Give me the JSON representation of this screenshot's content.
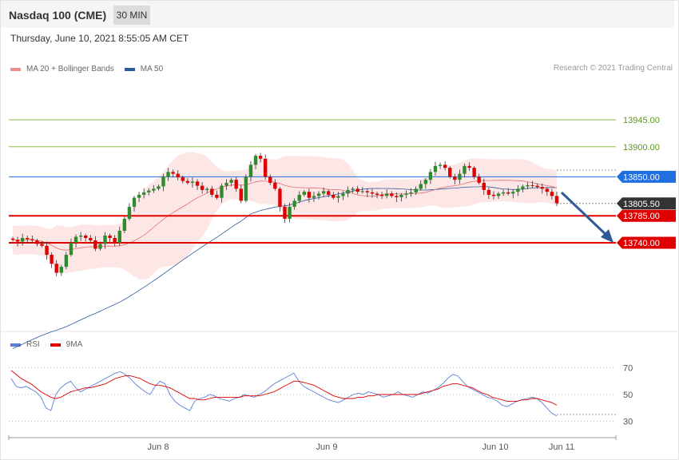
{
  "header": {
    "title": "Nasdaq 100 (CME)",
    "timeframe": "30 MIN"
  },
  "date_line": "Thursday, June 10, 2021 8:55:05 AM CET",
  "legend": {
    "main": [
      {
        "label": "MA 20 + Bollinger Bands",
        "color": "#f08c8c"
      },
      {
        "label": "MA 50",
        "color": "#2e5a99"
      }
    ],
    "rsi": [
      {
        "label": "RSI",
        "color": "#5b7fd6"
      },
      {
        "label": "9MA",
        "color": "#e00000"
      }
    ]
  },
  "credit": "Research © 2021 Trading Central",
  "chart_data": [
    {
      "type": "candlestick",
      "price_axis_range": [
        13600,
        13970
      ],
      "x_ticks": [
        "Jun 8",
        "Jun 9",
        "Jun 10",
        "Jun 11"
      ],
      "levels": [
        {
          "value": 13945.0,
          "label": "13945.00",
          "kind": "resistance",
          "color": "#8fbf4a"
        },
        {
          "value": 13900.0,
          "label": "13900.00",
          "kind": "resistance",
          "color": "#8fbf4a"
        },
        {
          "value": 13850.0,
          "label": "13850.00",
          "kind": "pivot",
          "color": "#1f6fe0"
        },
        {
          "value": 13805.5,
          "label": "13805.50",
          "kind": "last",
          "color": "#333333"
        },
        {
          "value": 13785.0,
          "label": "13785.00",
          "kind": "support",
          "color": "#e00000"
        },
        {
          "value": 13740.0,
          "label": "13740.00",
          "kind": "support",
          "color": "#e00000"
        }
      ],
      "close_path": [
        13745,
        13742,
        13748,
        13746,
        13744,
        13738,
        13735,
        13720,
        13705,
        13690,
        13700,
        13720,
        13740,
        13750,
        13752,
        13748,
        13744,
        13730,
        13738,
        13752,
        13748,
        13740,
        13760,
        13780,
        13800,
        13815,
        13820,
        13824,
        13827,
        13830,
        13834,
        13850,
        13858,
        13855,
        13849,
        13843,
        13840,
        13842,
        13835,
        13828,
        13830,
        13820,
        13815,
        13835,
        13840,
        13845,
        13830,
        13810,
        13850,
        13870,
        13885,
        13880,
        13850,
        13840,
        13830,
        13800,
        13780,
        13800,
        13810,
        13820,
        13825,
        13815,
        13818,
        13822,
        13826,
        13820,
        13815,
        13818,
        13822,
        13828,
        13830,
        13825,
        13826,
        13824,
        13822,
        13820,
        13818,
        13822,
        13818,
        13816,
        13820,
        13822,
        13824,
        13830,
        13838,
        13845,
        13858,
        13868,
        13870,
        13865,
        13850,
        13845,
        13855,
        13868,
        13865,
        13850,
        13840,
        13828,
        13820,
        13818,
        13822,
        13824,
        13822,
        13825,
        13830,
        13834,
        13836,
        13835,
        13833,
        13830,
        13825,
        13818,
        13806
      ]
    },
    {
      "type": "line",
      "title": "RSI",
      "y_ticks": [
        70,
        50,
        30
      ],
      "ylim": [
        20,
        80
      ],
      "series": [
        {
          "name": "RSI",
          "values": [
            62,
            56,
            55,
            56,
            54,
            52,
            48,
            40,
            38,
            50,
            55,
            58,
            60,
            55,
            52,
            54,
            56,
            58,
            60,
            62,
            64,
            66,
            67,
            65,
            62,
            58,
            55,
            52,
            50,
            56,
            60,
            58,
            50,
            45,
            42,
            40,
            38,
            45,
            47,
            48,
            50,
            49,
            47,
            46,
            45,
            47,
            48,
            50,
            49,
            48,
            50,
            52,
            55,
            58,
            60,
            62,
            64,
            66,
            60,
            56,
            54,
            52,
            50,
            48,
            46,
            45,
            44,
            46,
            48,
            50,
            51,
            50,
            52,
            51,
            50,
            48,
            49,
            50,
            52,
            50,
            49,
            48,
            50,
            52,
            51,
            53,
            55,
            58,
            62,
            65,
            64,
            60,
            56,
            54,
            52,
            50,
            48,
            47,
            45,
            42,
            41,
            43,
            45,
            46,
            47,
            48,
            47,
            44,
            40,
            36,
            34
          ]
        },
        {
          "name": "9MA",
          "values": [
            68,
            65,
            62,
            60,
            58,
            55,
            52,
            50,
            48,
            47,
            48,
            50,
            52,
            53,
            54,
            55,
            55,
            56,
            57,
            58,
            60,
            62,
            63,
            64,
            64,
            63,
            62,
            60,
            58,
            57,
            57,
            56,
            55,
            53,
            51,
            49,
            47,
            47,
            46,
            46,
            47,
            48,
            48,
            48,
            48,
            48,
            48,
            49,
            49,
            49,
            49,
            50,
            51,
            52,
            54,
            56,
            58,
            60,
            60,
            59,
            58,
            57,
            55,
            53,
            51,
            49,
            48,
            47,
            47,
            47,
            48,
            48,
            49,
            49,
            50,
            50,
            50,
            50,
            50,
            50,
            50,
            50,
            50,
            51,
            52,
            53,
            54,
            56,
            57,
            58,
            58,
            57,
            56,
            55,
            53,
            51,
            50,
            48,
            47,
            46,
            45,
            45,
            45,
            46,
            46,
            47,
            47,
            46,
            45,
            44,
            42
          ]
        }
      ]
    }
  ]
}
